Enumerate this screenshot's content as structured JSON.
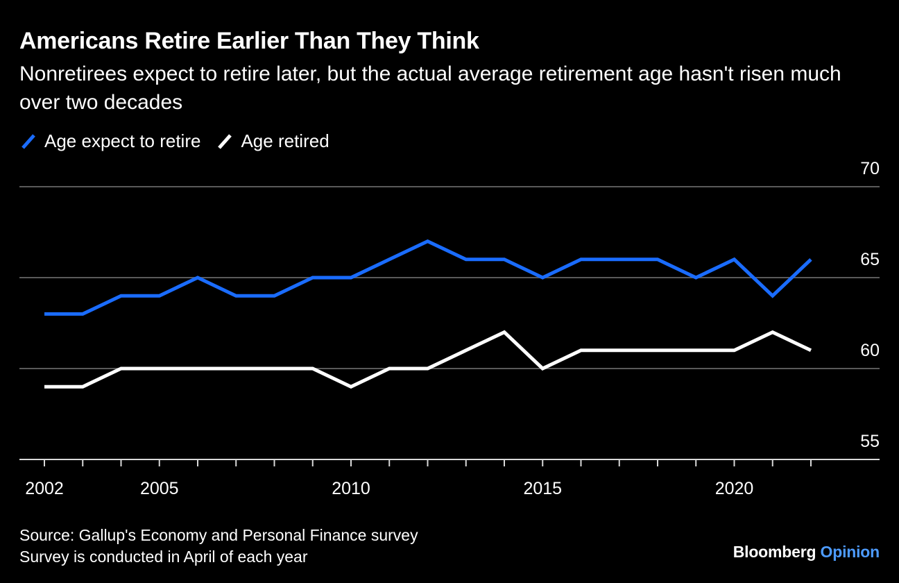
{
  "chart_data": {
    "type": "line",
    "title": "Americans Retire Earlier Than They Think",
    "subtitle": "Nonretirees expect to retire later, but the actual average retirement age hasn't risen much over two decades",
    "x": [
      2002,
      2003,
      2004,
      2005,
      2006,
      2007,
      2008,
      2009,
      2010,
      2011,
      2012,
      2013,
      2014,
      2015,
      2016,
      2017,
      2018,
      2019,
      2020,
      2021,
      2022
    ],
    "series": [
      {
        "name": "Age expect to retire",
        "color": "#1a6cff",
        "values": [
          63,
          63,
          64,
          64,
          65,
          64,
          64,
          65,
          65,
          66,
          67,
          66,
          66,
          65,
          66,
          66,
          66,
          65,
          66,
          64,
          66
        ]
      },
      {
        "name": "Age retired",
        "color": "#ffffff",
        "values": [
          59,
          59,
          60,
          60,
          60,
          60,
          60,
          60,
          59,
          60,
          60,
          61,
          62,
          60,
          61,
          61,
          61,
          61,
          61,
          62,
          61
        ]
      }
    ],
    "x_ticks": [
      "2002",
      "2005",
      "2010",
      "2015",
      "2020"
    ],
    "y_ticks": [
      "55",
      "60",
      "65",
      "70"
    ],
    "ylim": [
      55,
      70
    ],
    "xlabel": "",
    "ylabel": "",
    "grid": true,
    "legend_position": "top-left",
    "y_axis_side": "right"
  },
  "source": {
    "line1": "Source: Gallup's Economy and Personal Finance survey",
    "line2": "Survey is conducted in April of each year"
  },
  "brand": {
    "name": "Bloomberg",
    "suffix": "Opinion",
    "accent_color": "#4d9bff"
  }
}
